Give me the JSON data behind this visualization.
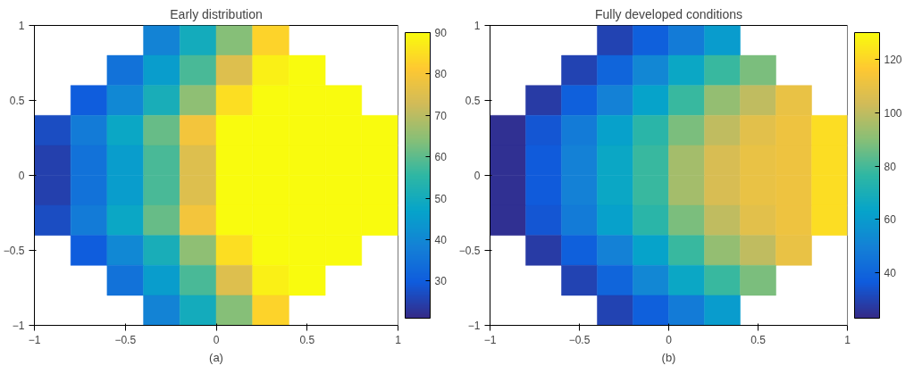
{
  "chart_data": [
    {
      "type": "heatmap",
      "title": "Early distribution",
      "annotations": [
        "(a)"
      ],
      "xlim": [
        -1,
        1
      ],
      "ylim": [
        -1,
        1
      ],
      "xticks": [
        -1,
        -0.5,
        0,
        0.5,
        1
      ],
      "yticks": [
        -1,
        -0.5,
        0,
        0.5,
        1
      ],
      "clim": [
        21,
        90
      ],
      "cticks": [
        30,
        40,
        50,
        60,
        70,
        80,
        90
      ],
      "grid": false,
      "cells": [
        [
          null,
          null,
          null,
          39,
          50,
          64,
          83,
          null,
          null,
          null
        ],
        [
          null,
          null,
          35,
          45,
          58,
          75,
          88,
          90,
          null,
          null
        ],
        [
          null,
          30,
          40,
          51,
          65,
          85,
          90,
          90,
          90,
          null
        ],
        [
          27,
          37,
          48,
          61,
          79,
          90,
          90,
          90,
          90,
          90
        ],
        [
          25,
          35,
          45,
          58,
          75,
          90,
          90,
          90,
          90,
          90
        ],
        [
          25,
          35,
          45,
          58,
          75,
          90,
          90,
          90,
          90,
          90
        ],
        [
          27,
          37,
          48,
          61,
          79,
          90,
          90,
          90,
          90,
          90
        ],
        [
          null,
          30,
          40,
          51,
          65,
          85,
          90,
          90,
          90,
          null
        ],
        [
          null,
          null,
          35,
          45,
          58,
          75,
          88,
          90,
          null,
          null
        ],
        [
          null,
          null,
          null,
          39,
          50,
          64,
          83,
          null,
          null,
          null
        ]
      ]
    },
    {
      "type": "heatmap",
      "title": "Fully developed conditions",
      "annotations": [
        "(b)"
      ],
      "xlim": [
        -1,
        1
      ],
      "ylim": [
        -1,
        1
      ],
      "xticks": [
        -1,
        -0.5,
        0,
        0.5,
        1
      ],
      "yticks": [
        -1,
        -0.5,
        0,
        0.5,
        1
      ],
      "clim": [
        23,
        130
      ],
      "cticks": [
        40,
        60,
        80,
        100,
        120
      ],
      "grid": false,
      "cells": [
        [
          null,
          null,
          null,
          30,
          38,
          48,
          60,
          null,
          null,
          null
        ],
        [
          null,
          null,
          30,
          40,
          52,
          65,
          78,
          88,
          null,
          null
        ],
        [
          null,
          28,
          38,
          50,
          63,
          78,
          92,
          100,
          110,
          null
        ],
        [
          25,
          35,
          48,
          62,
          75,
          88,
          100,
          108,
          112,
          122
        ],
        [
          25,
          36,
          50,
          65,
          78,
          95,
          105,
          110,
          112,
          122
        ],
        [
          25,
          36,
          50,
          65,
          78,
          95,
          105,
          110,
          112,
          122
        ],
        [
          25,
          35,
          48,
          62,
          75,
          88,
          100,
          108,
          112,
          122
        ],
        [
          null,
          28,
          38,
          50,
          63,
          78,
          92,
          100,
          110,
          null
        ],
        [
          null,
          null,
          30,
          40,
          52,
          65,
          78,
          88,
          null,
          null
        ],
        [
          null,
          null,
          null,
          30,
          38,
          48,
          60,
          null,
          null,
          null
        ]
      ]
    }
  ]
}
